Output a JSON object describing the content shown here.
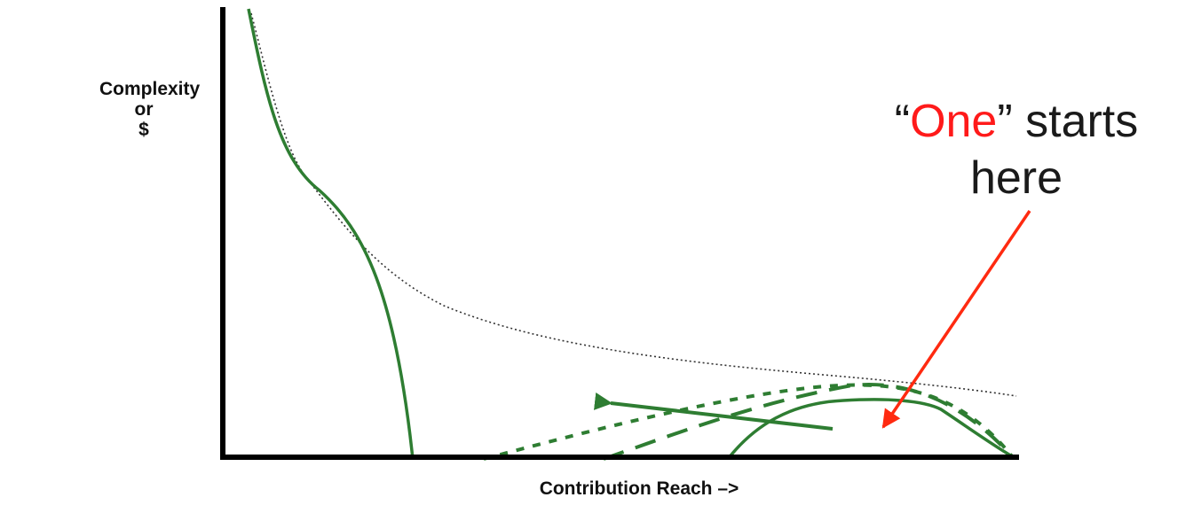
{
  "axes": {
    "y_label_lines": [
      "Complexity",
      "or",
      "$"
    ],
    "x_label": "Contribution Reach –>"
  },
  "callout": {
    "quote_open": "“",
    "highlight": "One",
    "quote_close_rest": "” starts",
    "line2": "here"
  },
  "colors": {
    "axis": "#000000",
    "curve_green": "#2e7d32",
    "envelope_dotted": "#333333",
    "pointer_arrow": "#ff2a10",
    "highlight_text": "#ff1a1a",
    "text": "#1a1a1a"
  }
}
